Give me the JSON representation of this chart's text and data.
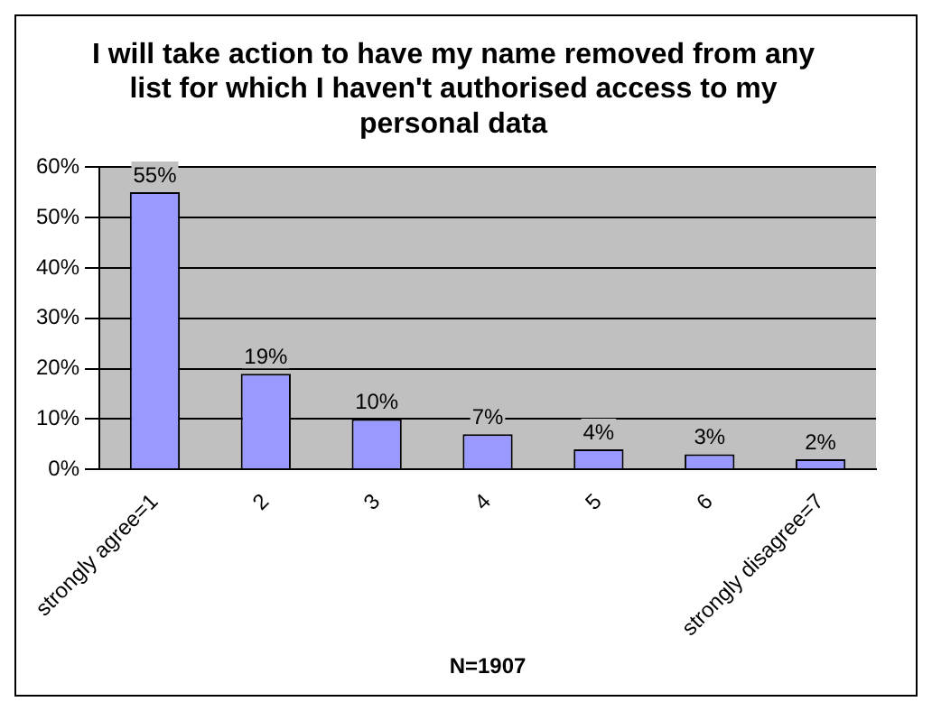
{
  "chart_data": {
    "type": "bar",
    "title": "I will take action to have my name removed from any list for which I haven't authorised access to my personal data",
    "xlabel": "N=1907",
    "categories": [
      "strongly agree=1",
      "2",
      "3",
      "4",
      "5",
      "6",
      "strongly disagree=7"
    ],
    "values": [
      55,
      19,
      10,
      7,
      4,
      3,
      2
    ],
    "value_labels": [
      "55%",
      "19%",
      "10%",
      "7%",
      "4%",
      "3%",
      "2%"
    ],
    "color": "#9999ff",
    "ylim": [
      0,
      60
    ],
    "yticks": [
      {
        "value": 0,
        "label": "0%"
      },
      {
        "value": 10,
        "label": "10%"
      },
      {
        "value": 20,
        "label": "20%"
      },
      {
        "value": 30,
        "label": "30%"
      },
      {
        "value": 40,
        "label": "40%"
      },
      {
        "value": 50,
        "label": "50%"
      },
      {
        "value": 60,
        "label": "60%"
      }
    ],
    "grid": "y",
    "legend": false
  }
}
